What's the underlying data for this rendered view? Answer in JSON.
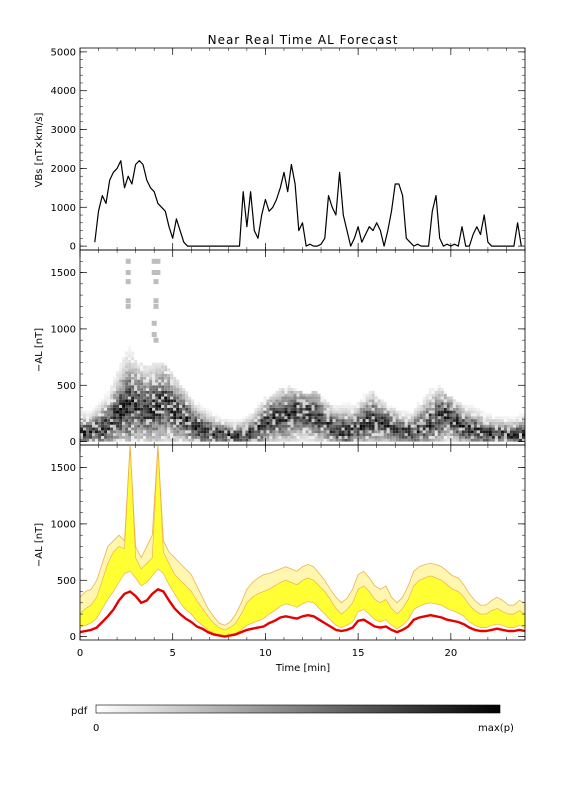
{
  "title": "Near Real Time AL Forecast",
  "colors": {
    "axis": "#000000",
    "vbs_line": "#000000",
    "band_fill": "#ffff33",
    "band_edge": "#f0b050",
    "median_line": "#e60000"
  },
  "chart_data": [
    {
      "id": "vbs",
      "type": "line",
      "ylabel": "VBs [nT×km/s]",
      "xlim": [
        0,
        24
      ],
      "ylim": [
        -100,
        5100
      ],
      "yticks": [
        0,
        1000,
        2000,
        3000,
        4000,
        5000
      ],
      "series": [
        {
          "x": [
            0.8,
            1.0,
            1.2,
            1.4,
            1.6,
            1.8,
            2.0,
            2.2,
            2.4,
            2.6,
            2.8,
            3.0,
            3.2,
            3.4,
            3.6,
            3.8,
            4.0,
            4.2,
            4.4,
            4.6,
            4.8,
            5.0,
            5.2,
            5.4,
            5.6,
            5.8,
            6.0,
            8.6,
            8.8,
            9.0,
            9.2,
            9.4,
            9.6,
            9.8,
            10.0,
            10.2,
            10.4,
            10.6,
            10.8,
            11.0,
            11.2,
            11.4,
            11.6,
            11.8,
            12.0,
            12.2,
            12.4,
            12.6,
            12.8,
            13.0,
            13.2,
            13.4,
            13.6,
            13.8,
            14.0,
            14.2,
            14.4,
            14.6,
            14.8,
            15.0,
            15.2,
            15.4,
            15.6,
            15.8,
            16.0,
            16.2,
            16.4,
            16.6,
            16.8,
            17.0,
            17.2,
            17.4,
            17.6,
            17.8,
            18.0,
            18.2,
            18.4,
            18.6,
            18.8,
            19.0,
            19.2,
            19.4,
            19.6,
            19.8,
            20.0,
            20.2,
            20.4,
            20.6,
            20.8,
            21.0,
            21.2,
            21.4,
            21.6,
            21.8,
            22.0,
            22.2,
            22.4,
            22.6,
            22.8,
            23.0,
            23.2,
            23.4,
            23.6,
            23.8
          ],
          "y": [
            100,
            900,
            1300,
            1100,
            1700,
            1900,
            2000,
            2200,
            1500,
            1800,
            1600,
            2100,
            2200,
            2100,
            1700,
            1500,
            1400,
            1100,
            1000,
            900,
            500,
            200,
            700,
            400,
            100,
            0,
            0,
            0,
            1400,
            500,
            1400,
            400,
            200,
            800,
            1200,
            900,
            1000,
            1200,
            1500,
            1900,
            1400,
            2100,
            1600,
            400,
            600,
            0,
            50,
            0,
            0,
            50,
            200,
            1300,
            1000,
            800,
            1900,
            800,
            400,
            0,
            200,
            500,
            100,
            300,
            500,
            400,
            600,
            400,
            0,
            400,
            900,
            1600,
            1600,
            1300,
            200,
            100,
            0,
            50,
            0,
            0,
            0,
            900,
            1300,
            200,
            0,
            50,
            0,
            50,
            0,
            500,
            0,
            0,
            300,
            500,
            300,
            800,
            100,
            0,
            0,
            0,
            0,
            0,
            0,
            0,
            600,
            0
          ]
        }
      ]
    },
    {
      "id": "pdf",
      "type": "heatmap",
      "ylabel": "−AL [nT]",
      "xlim": [
        0,
        24
      ],
      "ylim": [
        -30,
        1700
      ],
      "yticks": [
        0,
        500,
        1000,
        1500
      ],
      "x": [
        0.0,
        0.5,
        1.0,
        1.5,
        2.0,
        2.5,
        3.0,
        3.5,
        4.0,
        4.5,
        5.0,
        5.5,
        6.0,
        6.5,
        7.0,
        7.5,
        8.0,
        8.5,
        9.0,
        9.5,
        10.0,
        10.5,
        11.0,
        11.5,
        12.0,
        12.5,
        13.0,
        13.5,
        14.0,
        14.5,
        15.0,
        15.5,
        16.0,
        16.5,
        17.0,
        17.5,
        18.0,
        18.5,
        19.0,
        19.5,
        20.0,
        20.5,
        21.0,
        21.5,
        22.0,
        22.5,
        23.0,
        23.5
      ],
      "center": [
        50,
        70,
        100,
        150,
        250,
        300,
        320,
        280,
        300,
        330,
        250,
        200,
        120,
        80,
        60,
        50,
        40,
        40,
        60,
        100,
        180,
        200,
        220,
        250,
        230,
        220,
        150,
        100,
        80,
        100,
        150,
        180,
        150,
        120,
        80,
        70,
        100,
        150,
        200,
        220,
        150,
        100,
        80,
        60,
        60,
        50,
        50,
        50
      ],
      "max": [
        300,
        250,
        350,
        450,
        650,
        850,
        700,
        650,
        700,
        680,
        550,
        450,
        350,
        300,
        250,
        200,
        180,
        200,
        250,
        350,
        400,
        450,
        480,
        450,
        400,
        450,
        350,
        300,
        350,
        300,
        400,
        450,
        350,
        300,
        250,
        250,
        350,
        450,
        480,
        400,
        350,
        300,
        300,
        250,
        200,
        200,
        200,
        250
      ],
      "outliers": [
        {
          "x": 2.6,
          "y": 1600
        },
        {
          "x": 2.6,
          "y": 1500
        },
        {
          "x": 2.6,
          "y": 1420
        },
        {
          "x": 2.6,
          "y": 1250
        },
        {
          "x": 2.6,
          "y": 1200
        },
        {
          "x": 4.0,
          "y": 1600
        },
        {
          "x": 4.2,
          "y": 1600
        },
        {
          "x": 4.0,
          "y": 1500
        },
        {
          "x": 4.2,
          "y": 1500
        },
        {
          "x": 4.1,
          "y": 1420
        },
        {
          "x": 4.1,
          "y": 1250
        },
        {
          "x": 4.1,
          "y": 1200
        },
        {
          "x": 4.0,
          "y": 1050
        },
        {
          "x": 4.0,
          "y": 950
        },
        {
          "x": 4.1,
          "y": 900
        }
      ],
      "colorbar": {
        "label": "pdf",
        "min_label": "0",
        "max_label": "max(p)"
      }
    },
    {
      "id": "forecast",
      "type": "area",
      "xlabel": "Time [min]",
      "ylabel": "−AL [nT]",
      "xlim": [
        0,
        24
      ],
      "ylim": [
        -30,
        1700
      ],
      "xticks": [
        0,
        5,
        10,
        15,
        20
      ],
      "yticks": [
        0,
        500,
        1000,
        1500
      ],
      "x": [
        0.0,
        0.3,
        0.6,
        0.9,
        1.2,
        1.5,
        1.8,
        2.1,
        2.4,
        2.7,
        3.0,
        3.3,
        3.6,
        3.9,
        4.2,
        4.5,
        4.8,
        5.1,
        5.4,
        5.7,
        6.0,
        6.3,
        6.6,
        6.9,
        7.2,
        7.5,
        7.8,
        8.1,
        8.4,
        8.7,
        9.0,
        9.3,
        9.6,
        9.9,
        10.2,
        10.5,
        10.8,
        11.1,
        11.4,
        11.7,
        12.0,
        12.3,
        12.6,
        12.9,
        13.2,
        13.5,
        13.8,
        14.1,
        14.4,
        14.7,
        15.0,
        15.3,
        15.6,
        15.9,
        16.2,
        16.5,
        16.8,
        17.1,
        17.4,
        17.7,
        18.0,
        18.3,
        18.6,
        18.9,
        19.2,
        19.5,
        19.8,
        20.1,
        20.4,
        20.7,
        21.0,
        21.3,
        21.6,
        21.9,
        22.2,
        22.5,
        22.8,
        23.1,
        23.4,
        23.7,
        24.0
      ],
      "series": [
        {
          "role": "median",
          "y": [
            40,
            50,
            60,
            80,
            130,
            180,
            240,
            320,
            380,
            400,
            360,
            300,
            320,
            380,
            420,
            400,
            320,
            250,
            200,
            160,
            130,
            90,
            70,
            40,
            20,
            10,
            0,
            10,
            20,
            40,
            60,
            70,
            80,
            90,
            120,
            140,
            170,
            180,
            170,
            160,
            180,
            190,
            180,
            150,
            120,
            90,
            60,
            50,
            60,
            80,
            140,
            150,
            120,
            90,
            80,
            90,
            60,
            40,
            60,
            90,
            150,
            170,
            180,
            190,
            180,
            170,
            150,
            140,
            130,
            110,
            80,
            60,
            50,
            50,
            60,
            70,
            60,
            50,
            50,
            60,
            50
          ]
        },
        {
          "role": "band_lower",
          "y": [
            80,
            100,
            120,
            160,
            250,
            330,
            400,
            480,
            560,
            580,
            520,
            450,
            480,
            540,
            600,
            560,
            460,
            380,
            300,
            240,
            200,
            140,
            100,
            60,
            30,
            20,
            10,
            20,
            30,
            60,
            100,
            120,
            140,
            160,
            200,
            230,
            270,
            290,
            280,
            260,
            290,
            310,
            300,
            250,
            200,
            150,
            100,
            80,
            100,
            130,
            220,
            240,
            200,
            150,
            130,
            150,
            100,
            70,
            100,
            150,
            240,
            270,
            290,
            300,
            290,
            280,
            250,
            230,
            210,
            180,
            130,
            100,
            80,
            80,
            100,
            110,
            100,
            80,
            80,
            100,
            80
          ]
        },
        {
          "role": "band_upper",
          "y": [
            200,
            250,
            280,
            350,
            500,
            650,
            750,
            800,
            780,
            1700,
            700,
            600,
            650,
            700,
            1700,
            750,
            650,
            550,
            500,
            450,
            400,
            320,
            250,
            180,
            120,
            80,
            60,
            80,
            120,
            200,
            300,
            350,
            380,
            400,
            420,
            450,
            480,
            500,
            480,
            460,
            500,
            520,
            500,
            450,
            400,
            330,
            250,
            200,
            240,
            300,
            420,
            450,
            400,
            330,
            300,
            330,
            250,
            200,
            250,
            330,
            450,
            500,
            520,
            540,
            520,
            500,
            460,
            420,
            400,
            350,
            280,
            230,
            200,
            200,
            230,
            250,
            220,
            200,
            200,
            230,
            200
          ]
        },
        {
          "role": "envelope_max",
          "y": [
            350,
            400,
            420,
            500,
            650,
            800,
            850,
            900,
            850,
            1700,
            800,
            700,
            800,
            900,
            1700,
            850,
            750,
            700,
            650,
            600,
            550,
            450,
            350,
            250,
            180,
            120,
            100,
            130,
            200,
            300,
            420,
            480,
            520,
            550,
            560,
            580,
            600,
            620,
            600,
            580,
            620,
            640,
            620,
            560,
            500,
            420,
            350,
            300,
            340,
            420,
            550,
            580,
            520,
            450,
            420,
            450,
            350,
            300,
            350,
            450,
            580,
            620,
            640,
            650,
            640,
            620,
            580,
            540,
            520,
            460,
            380,
            320,
            280,
            280,
            320,
            350,
            320,
            280,
            280,
            320,
            300
          ]
        }
      ]
    }
  ]
}
